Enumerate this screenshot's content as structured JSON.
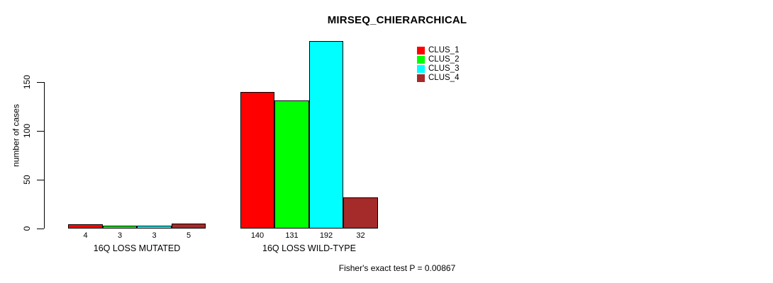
{
  "title": "MIRSEQ_CHIERARCHICAL",
  "footer": "Fisher's exact test P = 0.00867",
  "chart_data": {
    "type": "bar",
    "title": "MIRSEQ_CHIERARCHICAL",
    "xlabel": "",
    "ylabel": "number of cases",
    "categories": [
      "16Q LOSS MUTATED",
      "16Q LOSS WILD-TYPE"
    ],
    "series": [
      {
        "name": "CLUS_1",
        "color": "#FF0000",
        "values": [
          4,
          140
        ]
      },
      {
        "name": "CLUS_2",
        "color": "#00FF00",
        "values": [
          3,
          131
        ]
      },
      {
        "name": "CLUS_3",
        "color": "#00FFFF",
        "values": [
          3,
          192
        ]
      },
      {
        "name": "CLUS_4",
        "color": "#A52A2A",
        "values": [
          5,
          32
        ]
      }
    ],
    "yticks": [
      0,
      50,
      100,
      150
    ],
    "ylim": [
      0,
      200
    ],
    "grid": false,
    "legend_position": "top-right",
    "bar_value_labels": true,
    "annotation": "Fisher's exact test P = 0.00867"
  }
}
